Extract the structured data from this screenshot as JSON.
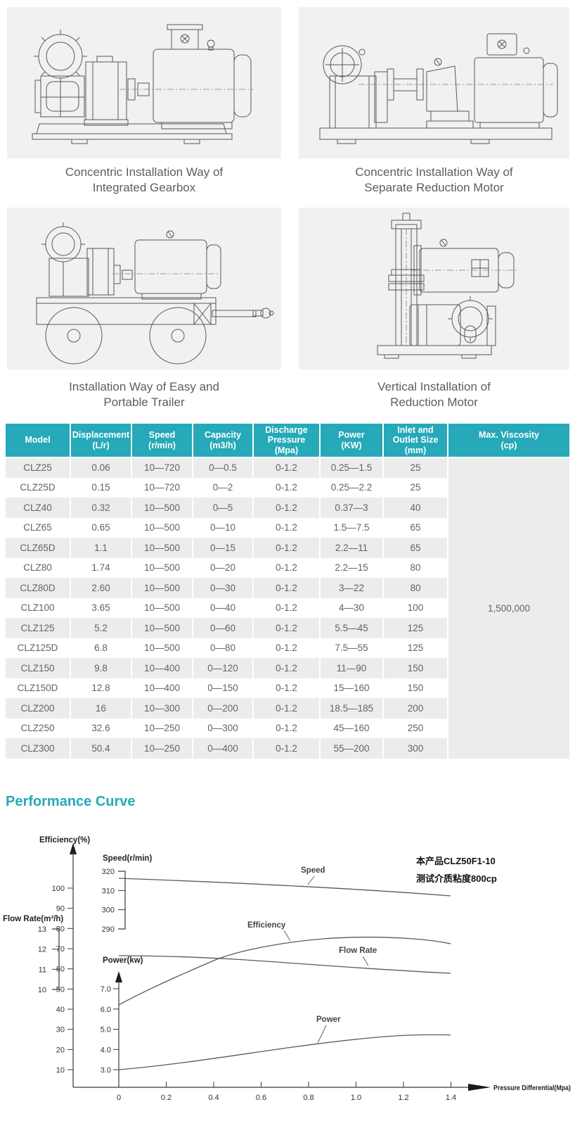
{
  "page": {
    "accent_teal": "#26a9b8",
    "row_stripe": "#ececec"
  },
  "drawings": [
    {
      "name": "integrated-gearbox",
      "caption_line1": "Concentric Installation Way of",
      "caption_line2": "Integrated Gearbox"
    },
    {
      "name": "separate-reduction-motor",
      "caption_line1": "Concentric Installation Way of",
      "caption_line2": "Separate Reduction Motor"
    },
    {
      "name": "portable-trailer",
      "caption_line1": "Installation Way of Easy and",
      "caption_line2": "Portable Trailer"
    },
    {
      "name": "vertical-reduction-motor",
      "caption_line1": "Vertical Installation of",
      "caption_line2": "Reduction Motor"
    }
  ],
  "spec_table": {
    "headers": [
      [
        "Model"
      ],
      [
        "Displacement",
        "(L/r)"
      ],
      [
        "Speed",
        "(r/min)"
      ],
      [
        "Capacity",
        "(m3/h)"
      ],
      [
        "Discharge",
        "Pressure",
        "(Mpa)"
      ],
      [
        "Power",
        "(KW)"
      ],
      [
        "Inlet and",
        "Outlet Size",
        "(mm)"
      ],
      [
        "Max. Viscosity",
        "(cp)"
      ]
    ],
    "rows": [
      [
        "CLZ25",
        "0.06",
        "10—720",
        "0—0.5",
        "0-1.2",
        "0.25—1.5",
        "25"
      ],
      [
        "CLZ25D",
        "0.15",
        "10—720",
        "0—2",
        "0-1.2",
        "0.25—2.2",
        "25"
      ],
      [
        "CLZ40",
        "0.32",
        "10—500",
        "0—5",
        "0-1.2",
        "0.37—3",
        "40"
      ],
      [
        "CLZ65",
        "0.65",
        "10—500",
        "0—10",
        "0-1.2",
        "1.5—7.5",
        "65"
      ],
      [
        "CLZ65D",
        "1.1",
        "10—500",
        "0—15",
        "0-1.2",
        "2.2—11",
        "65"
      ],
      [
        "CLZ80",
        "1.74",
        "10—500",
        "0—20",
        "0-1.2",
        "2.2—15",
        "80"
      ],
      [
        "CLZ80D",
        "2.60",
        "10—500",
        "0—30",
        "0-1.2",
        "3—22",
        "80"
      ],
      [
        "CLZ100",
        "3.65",
        "10—500",
        "0—40",
        "0-1.2",
        "4—30",
        "100"
      ],
      [
        "CLZ125",
        "5.2",
        "10—500",
        "0—60",
        "0-1.2",
        "5.5—45",
        "125"
      ],
      [
        "CLZ125D",
        "6.8",
        "10—500",
        "0—80",
        "0-1.2",
        "7.5—55",
        "125"
      ],
      [
        "CLZ150",
        "9.8",
        "10—400",
        "0—120",
        "0-1.2",
        "11—90",
        "150"
      ],
      [
        "CLZ150D",
        "12.8",
        "10—400",
        "0—150",
        "0-1.2",
        "15—160",
        "150"
      ],
      [
        "CLZ200",
        "16",
        "10—300",
        "0—200",
        "0-1.2",
        "18.5—185",
        "200"
      ],
      [
        "CLZ250",
        "32.6",
        "10—250",
        "0—300",
        "0-1.2",
        "45—160",
        "250"
      ],
      [
        "CLZ300",
        "50.4",
        "10—250",
        "0—400",
        "0-1.2",
        "55—200",
        "300"
      ]
    ],
    "max_viscosity": "1,500,000"
  },
  "performance": {
    "section_title": "Performance Curve",
    "annotation": [
      "本产品CLZ50F1-10",
      "测试介质粘度800cp"
    ]
  },
  "chart_data": {
    "type": "line",
    "x_axis": {
      "label": "Pressure Differential(Mpa)",
      "ticks": [
        "0",
        "0.2",
        "0.4",
        "0.6",
        "0.8",
        "1.0",
        "1.2",
        "1.4"
      ]
    },
    "axes": {
      "efficiency": {
        "label": "Efficiency(%)",
        "ticks": [
          100,
          90,
          80,
          70,
          60,
          50,
          40,
          30,
          20,
          10
        ]
      },
      "speed": {
        "label": "Speed(r/min)",
        "ticks": [
          320,
          310,
          300,
          290
        ]
      },
      "flow_rate": {
        "label": "Flow Rate(m³/h)",
        "ticks": [
          13,
          12,
          11,
          10
        ]
      },
      "power": {
        "label": "Power(kw)",
        "ticks": [
          "7.0",
          "6.0",
          "5.0",
          "4.0",
          "3.0"
        ]
      }
    },
    "series": [
      {
        "name": "Speed",
        "unit": "r/min",
        "x": [
          0,
          0.2,
          0.4,
          0.6,
          0.8,
          1.0,
          1.2,
          1.4
        ],
        "values": [
          316,
          315,
          313.5,
          312,
          310.5,
          309,
          308,
          307
        ]
      },
      {
        "name": "Efficiency",
        "unit": "%",
        "x": [
          0,
          0.2,
          0.4,
          0.6,
          0.8,
          1.0,
          1.2,
          1.4
        ],
        "values": [
          42,
          54,
          64,
          70.5,
          73.8,
          75.3,
          75,
          72.5
        ]
      },
      {
        "name": "Flow Rate",
        "unit": "m3/h",
        "x": [
          0,
          0.2,
          0.4,
          0.6,
          0.8,
          1.0,
          1.2,
          1.4
        ],
        "values": [
          11.65,
          11.65,
          11.55,
          11.4,
          11.2,
          11.05,
          10.9,
          10.8
        ]
      },
      {
        "name": "Power",
        "unit": "kw",
        "x": [
          0,
          0.2,
          0.4,
          0.6,
          0.8,
          1.0,
          1.2,
          1.4
        ],
        "values": [
          3.0,
          3.2,
          3.5,
          3.85,
          4.2,
          4.5,
          4.68,
          4.72
        ]
      }
    ],
    "legend_position": "inline-labels",
    "grid": false
  }
}
